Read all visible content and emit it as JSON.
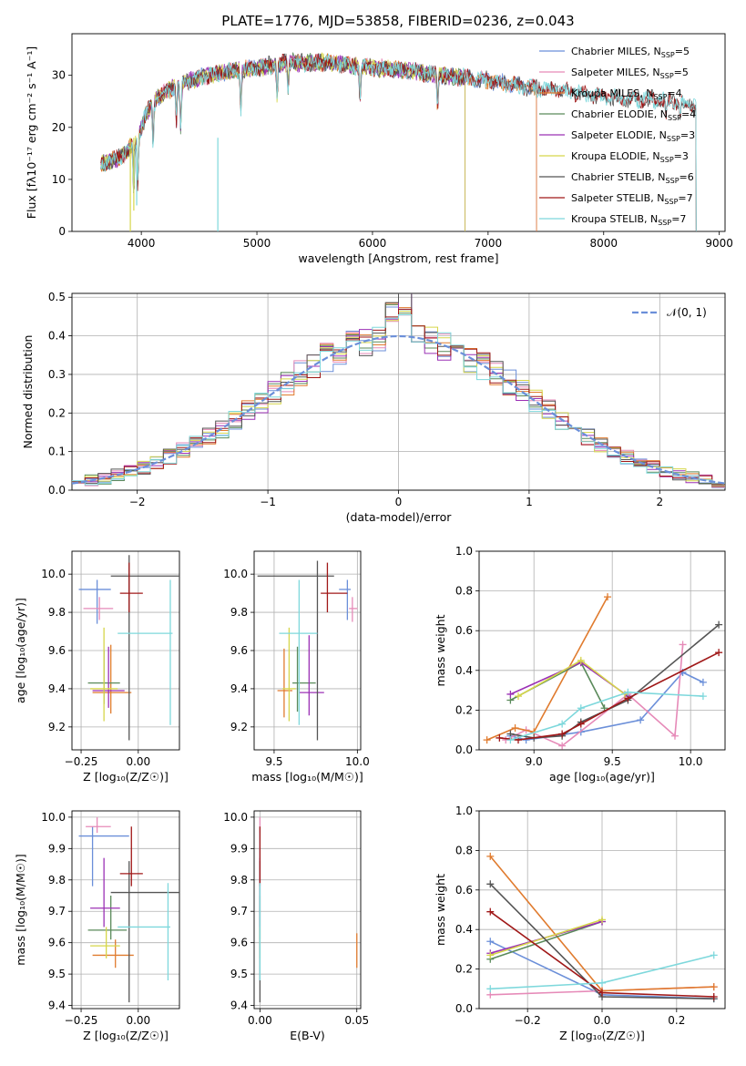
{
  "page_title": "PLATE=1776, MJD=53858, FIBERID=0236, z=0.043",
  "colors": {
    "Chabrier MILES": "#6b8fd9",
    "Salpeter MILES": "#e68ab8",
    "Kroupa MILES": "#e07b2e",
    "Chabrier ELODIE": "#5a8a5a",
    "Salpeter ELODIE": "#9b30b5",
    "Kroupa ELODIE": "#d6d64a",
    "Chabrier STELIB": "#555555",
    "Salpeter STELIB": "#a01818",
    "Kroupa STELIB": "#7ed8dc"
  },
  "chart_data": [
    {
      "id": "spectrum",
      "type": "line",
      "xlabel": "wavelength [Angstrom, rest frame]",
      "ylabel": "Flux [fλ10⁻¹⁷ erg cm⁻² s⁻¹ A⁻¹]",
      "xlim": [
        3400,
        9050
      ],
      "ylim": [
        0,
        38
      ],
      "xticks": [
        4000,
        5000,
        6000,
        7000,
        8000,
        9000
      ],
      "yticks": [
        0,
        10,
        20,
        30
      ],
      "legend_position": "top-right",
      "legend": [
        "Chabrier MILES, N_SSP=5",
        "Salpeter MILES, N_SSP=5",
        "Kroupa MILES, N_SSP=4",
        "Chabrier ELODIE, N_SSP=4",
        "Salpeter ELODIE, N_SSP=3",
        "Kroupa ELODIE, N_SSP=3",
        "Chabrier STELIB, N_SSP=6",
        "Salpeter STELIB, N_SSP=7",
        "Kroupa STELIB, N_SSP=7"
      ],
      "continuum": {
        "x": [
          3650,
          3800,
          3950,
          4050,
          4150,
          4300,
          4500,
          4700,
          5000,
          5300,
          5600,
          6000,
          6300,
          6600,
          7000,
          7400,
          7800,
          8200,
          8600,
          8800
        ],
        "y": [
          13,
          14,
          17,
          23,
          26,
          28,
          29.5,
          30.5,
          31.5,
          32.5,
          32.5,
          31.5,
          31,
          30,
          29,
          27.5,
          26.5,
          25.5,
          25,
          24
        ]
      },
      "series_extent": [
        {
          "name": "Chabrier MILES",
          "x_range": [
            3650,
            7420
          ]
        },
        {
          "name": "Salpeter MILES",
          "x_range": [
            3650,
            7420
          ]
        },
        {
          "name": "Kroupa MILES",
          "x_range": [
            3650,
            7420
          ]
        },
        {
          "name": "Chabrier ELODIE",
          "x_range": [
            3650,
            6800
          ]
        },
        {
          "name": "Salpeter ELODIE",
          "x_range": [
            3650,
            6800
          ]
        },
        {
          "name": "Kroupa ELODIE",
          "x_range": [
            3650,
            6800
          ]
        },
        {
          "name": "Chabrier STELIB",
          "x_range": [
            3650,
            8800
          ]
        },
        {
          "name": "Salpeter STELIB",
          "x_range": [
            3650,
            8800
          ]
        },
        {
          "name": "Kroupa STELIB",
          "x_range": [
            3650,
            8800
          ]
        }
      ]
    },
    {
      "id": "residuals",
      "type": "line",
      "xlabel": "(data-model)/error",
      "ylabel": "Normed distribution",
      "xlim": [
        -2.5,
        2.5
      ],
      "ylim": [
        0,
        0.51
      ],
      "xticks": [
        -2,
        -1,
        0,
        1,
        2
      ],
      "yticks": [
        0.0,
        0.1,
        0.2,
        0.3,
        0.4,
        0.5
      ],
      "grid": true,
      "legend_position": "top-right",
      "legend": [
        "𝒩(0, 1)"
      ],
      "bin_width": 0.1,
      "normal_curve": {
        "mean": 0,
        "sigma": 1,
        "color": "#6b8fd9"
      }
    },
    {
      "id": "age-vs-Z",
      "type": "scatter",
      "xlabel": "Z [log₁₀(Z/Z☉)]",
      "ylabel": "age [log₁₀(age/yr)]",
      "xlim": [
        -0.29,
        0.18
      ],
      "ylim": [
        9.08,
        10.12
      ],
      "xticks": [
        -0.25,
        0.0
      ],
      "xticklabels": [
        "−0.25",
        "0.00"
      ],
      "yticks": [
        9.2,
        9.4,
        9.6,
        9.8,
        10.0
      ],
      "grid": true,
      "points": [
        {
          "name": "Chabrier MILES",
          "x": -0.18,
          "xlo": -0.26,
          "xhi": -0.12,
          "y": 9.92,
          "ylo": 9.74,
          "yhi": 9.97
        },
        {
          "name": "Salpeter MILES",
          "x": -0.17,
          "xlo": -0.24,
          "xhi": -0.11,
          "y": 9.82,
          "ylo": 9.76,
          "yhi": 9.88
        },
        {
          "name": "Kroupa MILES",
          "x": -0.12,
          "xlo": -0.2,
          "xhi": -0.03,
          "y": 9.38,
          "ylo": 9.27,
          "yhi": 9.63
        },
        {
          "name": "Chabrier ELODIE",
          "x": -0.15,
          "xlo": -0.22,
          "xhi": -0.08,
          "y": 9.43,
          "ylo": 9.32,
          "yhi": 9.6
        },
        {
          "name": "Salpeter ELODIE",
          "x": -0.13,
          "xlo": -0.2,
          "xhi": -0.06,
          "y": 9.39,
          "ylo": 9.3,
          "yhi": 9.62
        },
        {
          "name": "Kroupa ELODIE",
          "x": -0.15,
          "xlo": -0.21,
          "xhi": -0.09,
          "y": 9.4,
          "ylo": 9.23,
          "yhi": 9.72
        },
        {
          "name": "Chabrier STELIB",
          "x": -0.04,
          "xlo": -0.12,
          "xhi": 0.2,
          "y": 9.99,
          "ylo": 9.13,
          "yhi": 10.1
        },
        {
          "name": "Salpeter STELIB",
          "x": -0.04,
          "xlo": -0.08,
          "xhi": 0.02,
          "y": 9.9,
          "ylo": 9.8,
          "yhi": 10.06
        },
        {
          "name": "Kroupa STELIB",
          "x": 0.14,
          "xlo": -0.09,
          "xhi": 0.15,
          "y": 9.69,
          "ylo": 9.21,
          "yhi": 9.97
        }
      ]
    },
    {
      "id": "age-vs-mass",
      "type": "scatter",
      "xlabel": "mass [log₁₀(M/M☉)]",
      "ylabel": "",
      "xlim": [
        9.38,
        10.02
      ],
      "ylim": [
        9.08,
        10.12
      ],
      "xticks": [
        9.5,
        10.0
      ],
      "xticklabels": [
        "9.5",
        "10.0"
      ],
      "yticks": [
        9.2,
        9.4,
        9.6,
        9.8,
        10.0
      ],
      "grid": true,
      "points": [
        {
          "name": "Chabrier MILES",
          "x": 9.94,
          "xlo": 9.89,
          "xhi": 9.96,
          "y": 9.92,
          "ylo": 9.76,
          "yhi": 9.97
        },
        {
          "name": "Salpeter MILES",
          "x": 9.97,
          "xlo": 9.95,
          "xhi": 10.0,
          "y": 9.82,
          "ylo": 9.75,
          "yhi": 9.88
        },
        {
          "name": "Kroupa MILES",
          "x": 9.56,
          "xlo": 9.52,
          "xhi": 9.61,
          "y": 9.39,
          "ylo": 9.25,
          "yhi": 9.61
        },
        {
          "name": "Chabrier ELODIE",
          "x": 9.64,
          "xlo": 9.61,
          "xhi": 9.75,
          "y": 9.43,
          "ylo": 9.28,
          "yhi": 9.62
        },
        {
          "name": "Salpeter ELODIE",
          "x": 9.71,
          "xlo": 9.65,
          "xhi": 9.8,
          "y": 9.38,
          "ylo": 9.26,
          "yhi": 9.68
        },
        {
          "name": "Kroupa ELODIE",
          "x": 9.59,
          "xlo": 9.55,
          "xhi": 9.63,
          "y": 9.4,
          "ylo": 9.23,
          "yhi": 9.72
        },
        {
          "name": "Chabrier STELIB",
          "x": 9.76,
          "xlo": 9.4,
          "xhi": 9.86,
          "y": 9.99,
          "ylo": 9.13,
          "yhi": 10.07
        },
        {
          "name": "Salpeter STELIB",
          "x": 9.82,
          "xlo": 9.78,
          "xhi": 9.94,
          "y": 9.9,
          "ylo": 9.8,
          "yhi": 10.06
        },
        {
          "name": "Kroupa STELIB",
          "x": 9.65,
          "xlo": 9.53,
          "xhi": 9.76,
          "y": 9.69,
          "ylo": 9.21,
          "yhi": 9.97
        }
      ]
    },
    {
      "id": "weight-vs-age",
      "type": "line",
      "xlabel": "age [log₁₀(age/yr)]",
      "ylabel": "mass weight",
      "xlim": [
        8.65,
        10.22
      ],
      "ylim": [
        0,
        1.0
      ],
      "xticks": [
        9.0,
        9.5,
        10.0
      ],
      "xticklabels": [
        "9.0",
        "9.5",
        "10.0"
      ],
      "yticks": [
        0.0,
        0.2,
        0.4,
        0.6,
        0.8,
        1.0
      ],
      "grid": true,
      "series": [
        {
          "name": "Chabrier MILES",
          "x": [
            8.85,
            8.95,
            9.3,
            9.68,
            9.95,
            10.08
          ],
          "y": [
            0.07,
            0.05,
            0.09,
            0.15,
            0.39,
            0.34
          ]
        },
        {
          "name": "Salpeter MILES",
          "x": [
            8.82,
            8.95,
            9.18,
            9.6,
            9.9,
            9.95
          ],
          "y": [
            0.05,
            0.1,
            0.02,
            0.28,
            0.07,
            0.53
          ]
        },
        {
          "name": "Kroupa MILES",
          "x": [
            8.7,
            8.88,
            9.0,
            9.47
          ],
          "y": [
            0.05,
            0.11,
            0.09,
            0.77
          ]
        },
        {
          "name": "Chabrier ELODIE",
          "x": [
            8.85,
            9.3,
            9.45
          ],
          "y": [
            0.25,
            0.44,
            0.21
          ]
        },
        {
          "name": "Salpeter ELODIE",
          "x": [
            8.85,
            9.3,
            9.6
          ],
          "y": [
            0.28,
            0.44,
            0.27
          ]
        },
        {
          "name": "Kroupa ELODIE",
          "x": [
            8.9,
            9.3,
            9.58
          ],
          "y": [
            0.27,
            0.45,
            0.28
          ]
        },
        {
          "name": "Chabrier STELIB",
          "x": [
            8.85,
            9.0,
            9.18,
            9.3,
            9.6,
            10.18
          ],
          "y": [
            0.08,
            0.06,
            0.07,
            0.14,
            0.25,
            0.63
          ]
        },
        {
          "name": "Salpeter STELIB",
          "x": [
            8.78,
            8.9,
            9.18,
            9.3,
            9.6,
            10.18
          ],
          "y": [
            0.06,
            0.05,
            0.08,
            0.13,
            0.26,
            0.49
          ]
        },
        {
          "name": "Kroupa STELIB",
          "x": [
            8.85,
            9.18,
            9.3,
            9.6,
            10.08
          ],
          "y": [
            0.05,
            0.13,
            0.21,
            0.29,
            0.27
          ]
        }
      ]
    },
    {
      "id": "mass-vs-Z",
      "type": "scatter",
      "xlabel": "Z [log₁₀(Z/Z☉)]",
      "ylabel": "mass [log₁₀(M/M☉)]",
      "xlim": [
        -0.29,
        0.18
      ],
      "ylim": [
        9.39,
        10.02
      ],
      "xticks": [
        -0.25,
        0.0
      ],
      "xticklabels": [
        "−0.25",
        "0.00"
      ],
      "yticks": [
        9.4,
        9.5,
        9.6,
        9.7,
        9.8,
        9.9,
        10.0
      ],
      "grid": true,
      "points": [
        {
          "name": "Chabrier MILES",
          "x": -0.2,
          "xlo": -0.26,
          "xhi": -0.04,
          "y": 9.94,
          "ylo": 9.78,
          "yhi": 9.97
        },
        {
          "name": "Salpeter MILES",
          "x": -0.18,
          "xlo": -0.23,
          "xhi": -0.12,
          "y": 9.97,
          "ylo": 9.95,
          "yhi": 10.0
        },
        {
          "name": "Kroupa MILES",
          "x": -0.1,
          "xlo": -0.2,
          "xhi": -0.02,
          "y": 9.56,
          "ylo": 9.52,
          "yhi": 9.61
        },
        {
          "name": "Chabrier ELODIE",
          "x": -0.12,
          "xlo": -0.22,
          "xhi": -0.05,
          "y": 9.64,
          "ylo": 9.61,
          "yhi": 9.75
        },
        {
          "name": "Salpeter ELODIE",
          "x": -0.15,
          "xlo": -0.21,
          "xhi": -0.08,
          "y": 9.71,
          "ylo": 9.65,
          "yhi": 9.87
        },
        {
          "name": "Kroupa ELODIE",
          "x": -0.14,
          "xlo": -0.21,
          "xhi": -0.08,
          "y": 9.59,
          "ylo": 9.55,
          "yhi": 9.65
        },
        {
          "name": "Chabrier STELIB",
          "x": -0.04,
          "xlo": -0.12,
          "xhi": 0.2,
          "y": 9.76,
          "ylo": 9.41,
          "yhi": 9.86
        },
        {
          "name": "Salpeter STELIB",
          "x": -0.03,
          "xlo": -0.08,
          "xhi": 0.02,
          "y": 9.82,
          "ylo": 9.78,
          "yhi": 9.97
        },
        {
          "name": "Kroupa STELIB",
          "x": 0.13,
          "xlo": -0.09,
          "xhi": 0.14,
          "y": 9.65,
          "ylo": 9.48,
          "yhi": 9.79
        }
      ]
    },
    {
      "id": "mass-vs-ebv",
      "type": "scatter",
      "xlabel": "E(B-V)",
      "ylabel": "",
      "xlim": [
        -0.003,
        0.052
      ],
      "ylim": [
        9.39,
        10.02
      ],
      "xticks": [
        0.0,
        0.05
      ],
      "xticklabels": [
        "0.00",
        "0.05"
      ],
      "yticks": [
        9.4,
        9.5,
        9.6,
        9.7,
        9.8,
        9.9,
        10.0
      ],
      "grid": true,
      "points": [
        {
          "name": "Chabrier MILES",
          "x": 0.0,
          "y": 9.94,
          "ylo": 9.78,
          "yhi": 9.97
        },
        {
          "name": "Salpeter MILES",
          "x": 0.0,
          "y": 9.97,
          "ylo": 9.95,
          "yhi": 10.0
        },
        {
          "name": "Kroupa MILES",
          "x": 0.05,
          "y": 9.56,
          "ylo": 9.52,
          "yhi": 9.63
        },
        {
          "name": "Chabrier ELODIE",
          "x": 0.0,
          "y": 9.64,
          "ylo": 9.61,
          "yhi": 9.75
        },
        {
          "name": "Salpeter ELODIE",
          "x": 0.0,
          "y": 9.71,
          "ylo": 9.65,
          "yhi": 9.87
        },
        {
          "name": "Kroupa ELODIE",
          "x": 0.0,
          "y": 9.59,
          "ylo": 9.55,
          "yhi": 9.65
        },
        {
          "name": "Chabrier STELIB",
          "x": 0.0,
          "y": 9.76,
          "ylo": 9.41,
          "yhi": 9.86
        },
        {
          "name": "Salpeter STELIB",
          "x": 0.0,
          "y": 9.82,
          "ylo": 9.78,
          "yhi": 9.97
        },
        {
          "name": "Kroupa STELIB",
          "x": 0.0,
          "y": 9.65,
          "ylo": 9.48,
          "yhi": 9.79
        }
      ]
    },
    {
      "id": "weight-vs-Z",
      "type": "line",
      "xlabel": "Z [log₁₀(Z/Z☉)]",
      "ylabel": "mass weight",
      "xlim": [
        -0.33,
        0.33
      ],
      "ylim": [
        0,
        1.0
      ],
      "xticks": [
        -0.2,
        0.0,
        0.2
      ],
      "xticklabels": [
        "−0.2",
        "0.0",
        "0.2"
      ],
      "yticks": [
        0.0,
        0.2,
        0.4,
        0.6,
        0.8,
        1.0
      ],
      "grid": true,
      "series": [
        {
          "name": "Chabrier MILES",
          "x": [
            -0.3,
            0.0,
            0.3
          ],
          "y": [
            0.34,
            0.07,
            0.05
          ]
        },
        {
          "name": "Salpeter MILES",
          "x": [
            -0.3,
            0.0,
            0.3
          ],
          "y": [
            0.07,
            0.09,
            0.11
          ]
        },
        {
          "name": "Kroupa MILES",
          "x": [
            -0.3,
            0.0,
            0.3
          ],
          "y": [
            0.77,
            0.09,
            0.11
          ]
        },
        {
          "name": "Chabrier ELODIE",
          "x": [
            -0.3,
            0.0
          ],
          "y": [
            0.25,
            0.44
          ]
        },
        {
          "name": "Salpeter ELODIE",
          "x": [
            -0.3,
            0.0
          ],
          "y": [
            0.28,
            0.44
          ]
        },
        {
          "name": "Kroupa ELODIE",
          "x": [
            -0.3,
            0.0
          ],
          "y": [
            0.27,
            0.45
          ]
        },
        {
          "name": "Chabrier STELIB",
          "x": [
            -0.3,
            0.0,
            0.3
          ],
          "y": [
            0.63,
            0.06,
            0.05
          ]
        },
        {
          "name": "Salpeter STELIB",
          "x": [
            -0.3,
            0.0,
            0.3
          ],
          "y": [
            0.49,
            0.08,
            0.06
          ]
        },
        {
          "name": "Kroupa STELIB",
          "x": [
            -0.3,
            0.0,
            0.3
          ],
          "y": [
            0.1,
            0.13,
            0.27
          ]
        }
      ]
    }
  ]
}
